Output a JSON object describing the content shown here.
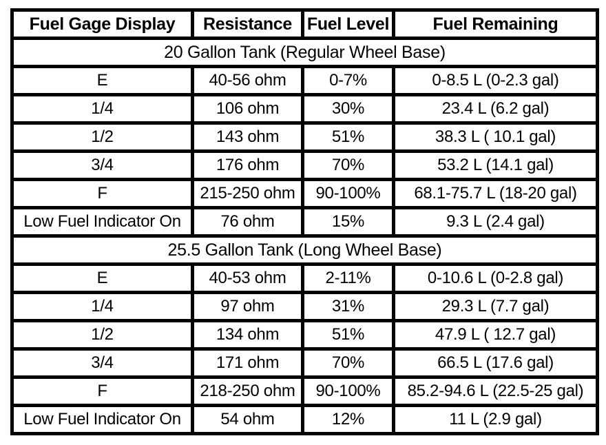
{
  "colors": {
    "border": "#000000",
    "background": "#ffffff",
    "text": "#000000"
  },
  "table": {
    "headers": [
      "Fuel Gage Display",
      "Resistance",
      "Fuel Level",
      "Fuel Remaining"
    ],
    "sections": [
      {
        "title": "20 Gallon Tank (Regular Wheel Base)",
        "rows": [
          [
            "E",
            "40-56 ohm",
            "0-7%",
            "0-8.5 L (0-2.3 gal)"
          ],
          [
            "1/4",
            "106 ohm",
            "30%",
            "23.4 L (6.2 gal)"
          ],
          [
            "1/2",
            "143 ohm",
            "51%",
            "38.3 L ( 10.1 gal)"
          ],
          [
            "3/4",
            "176 ohm",
            "70%",
            "53.2 L (14.1 gal)"
          ],
          [
            "F",
            "215-250 ohm",
            "90-100%",
            "68.1-75.7 L (18-20 gal)"
          ],
          [
            "Low Fuel Indicator On",
            "76 ohm",
            "15%",
            "9.3 L (2.4 gal)"
          ]
        ]
      },
      {
        "title": "25.5 Gallon Tank (Long Wheel Base)",
        "rows": [
          [
            "E",
            "40-53 ohm",
            "2-11%",
            "0-10.6 L (0-2.8 gal)"
          ],
          [
            "1/4",
            "97 ohm",
            "31%",
            "29.3 L (7.7 gal)"
          ],
          [
            "1/2",
            "134 ohm",
            "51%",
            "47.9 L ( 12.7 gal)"
          ],
          [
            "3/4",
            "171 ohm",
            "70%",
            "66.5 L (17.6 gal)"
          ],
          [
            "F",
            "218-250 ohm",
            "90-100%",
            "85.2-94.6 L (22.5-25 gal)"
          ],
          [
            "Low Fuel Indicator On",
            "54 ohm",
            "12%",
            "11 L (2.9 gal)"
          ]
        ]
      }
    ]
  }
}
